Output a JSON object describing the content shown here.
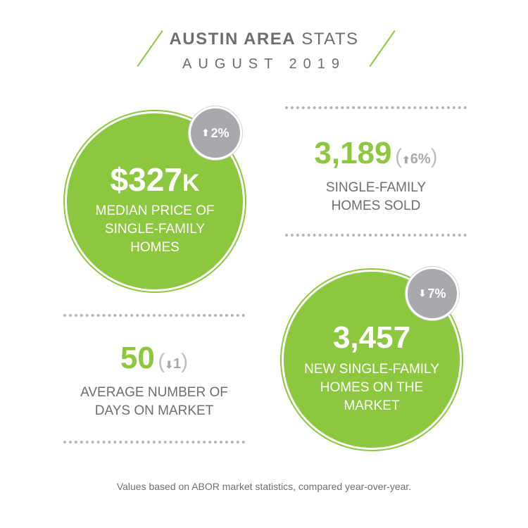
{
  "header": {
    "title_bold": "AUSTIN AREA",
    "title_light": "STATS",
    "subtitle": "AUGUST 2019"
  },
  "median_price": {
    "value": "$327",
    "suffix": "K",
    "label_line1": "MEDIAN PRICE OF",
    "label_line2": "SINGLE-FAMILY",
    "label_line3": "HOMES",
    "change": "2%",
    "change_dir": "up"
  },
  "homes_sold": {
    "value": "3,189",
    "change": "6%",
    "change_dir": "up",
    "label_line1": "SINGLE-FAMILY",
    "label_line2": "HOMES SOLD"
  },
  "days_on_market": {
    "value": "50",
    "change": "1",
    "change_dir": "down",
    "label_line1": "AVERAGE NUMBER OF",
    "label_line2": "DAYS ON MARKET"
  },
  "new_homes": {
    "value": "3,457",
    "change": "7%",
    "change_dir": "down",
    "label_line1": "NEW SINGLE-FAMILY",
    "label_line2": "HOMES ON THE",
    "label_line3": "MARKET"
  },
  "footer": "Values based on ABOR market statistics, compared year-over-year.",
  "colors": {
    "green": "#8dc63f",
    "grey_text": "#6d6e71",
    "badge_grey": "#a7a9ac"
  },
  "icons": {
    "up": "arrow-up-icon",
    "down": "arrow-down-icon"
  }
}
